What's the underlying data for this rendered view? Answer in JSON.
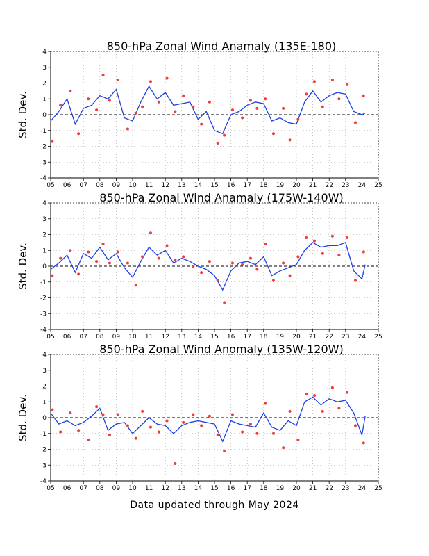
{
  "footer": "Data updated through May 2024",
  "colors": {
    "line": "#1f3fe0",
    "points": "#f03c3c",
    "frame": "#000000",
    "grid": "#a0a0a0"
  },
  "chart_data": [
    {
      "type": "line",
      "title": "850-hPa Zonal Wind Anamaly (135E-180)",
      "ylabel": "Std. Dev.",
      "xlim": [
        2005,
        2025
      ],
      "ylim": [
        -4,
        4
      ],
      "x_ticks": [
        "05",
        "06",
        "07",
        "08",
        "09",
        "10",
        "11",
        "12",
        "13",
        "14",
        "15",
        "16",
        "17",
        "18",
        "19",
        "20",
        "21",
        "22",
        "23",
        "24",
        "25"
      ],
      "y_ticks": [
        "-4",
        "-3",
        "-2",
        "-1",
        "0",
        "1",
        "2",
        "3",
        "4"
      ],
      "series": [
        {
          "kind": "smoothed",
          "x": [
            2005.0,
            2005.5,
            2006.0,
            2006.5,
            2007.0,
            2007.5,
            2008.0,
            2008.5,
            2009.0,
            2009.5,
            2010.0,
            2010.5,
            2011.0,
            2011.5,
            2012.0,
            2012.5,
            2013.0,
            2013.5,
            2014.0,
            2014.5,
            2015.0,
            2015.5,
            2016.0,
            2016.5,
            2017.0,
            2017.5,
            2018.0,
            2018.5,
            2019.0,
            2019.5,
            2020.0,
            2020.5,
            2021.0,
            2021.5,
            2022.0,
            2022.5,
            2023.0,
            2023.5,
            2024.0,
            2024.2
          ],
          "y": [
            -0.4,
            0.2,
            1.0,
            -0.6,
            0.4,
            0.6,
            1.2,
            1.0,
            1.6,
            -0.2,
            -0.4,
            0.8,
            1.8,
            1.0,
            1.4,
            0.6,
            0.7,
            0.8,
            -0.3,
            0.2,
            -1.0,
            -1.2,
            0.0,
            0.2,
            0.6,
            0.8,
            0.7,
            -0.4,
            -0.2,
            -0.5,
            -0.6,
            0.8,
            1.5,
            0.8,
            1.2,
            1.4,
            1.3,
            0.2,
            0.0,
            0.1
          ]
        },
        {
          "kind": "monthly",
          "x": [
            2005.1,
            2005.6,
            2006.2,
            2006.7,
            2007.3,
            2007.8,
            2008.2,
            2008.6,
            2009.1,
            2009.7,
            2010.2,
            2010.6,
            2011.1,
            2011.6,
            2012.1,
            2012.6,
            2013.1,
            2013.7,
            2014.2,
            2014.7,
            2015.2,
            2015.6,
            2016.1,
            2016.7,
            2017.2,
            2017.6,
            2018.1,
            2018.6,
            2019.2,
            2019.6,
            2020.1,
            2020.6,
            2021.1,
            2021.6,
            2022.2,
            2022.6,
            2023.1,
            2023.6,
            2024.1
          ],
          "y": [
            -1.7,
            0.6,
            1.5,
            -1.2,
            1.0,
            0.3,
            2.5,
            0.9,
            2.2,
            -0.9,
            0.1,
            0.5,
            2.1,
            0.8,
            2.3,
            0.2,
            1.2,
            0.5,
            -0.6,
            0.8,
            -1.8,
            -1.3,
            0.3,
            -0.2,
            0.9,
            0.4,
            1.0,
            -1.2,
            0.4,
            -1.6,
            -0.3,
            1.3,
            2.1,
            0.5,
            2.2,
            1.0,
            1.9,
            -0.5,
            1.2
          ]
        }
      ]
    },
    {
      "type": "line",
      "title": "850-hPa Zonal Wind Anamaly (175W-140W)",
      "ylabel": "Std. Dev.",
      "xlim": [
        2005,
        2025
      ],
      "ylim": [
        -4,
        4
      ],
      "x_ticks": [
        "05",
        "06",
        "07",
        "08",
        "09",
        "10",
        "11",
        "12",
        "13",
        "14",
        "15",
        "16",
        "17",
        "18",
        "19",
        "20",
        "21",
        "22",
        "23",
        "24",
        "25"
      ],
      "y_ticks": [
        "-4",
        "-3",
        "-2",
        "-1",
        "0",
        "1",
        "2",
        "3",
        "4"
      ],
      "series": [
        {
          "kind": "smoothed",
          "x": [
            2005.0,
            2005.5,
            2006.0,
            2006.5,
            2007.0,
            2007.5,
            2008.0,
            2008.5,
            2009.0,
            2009.5,
            2010.0,
            2010.5,
            2011.0,
            2011.5,
            2012.0,
            2012.5,
            2013.0,
            2013.5,
            2014.0,
            2014.5,
            2015.0,
            2015.5,
            2016.0,
            2016.5,
            2017.0,
            2017.5,
            2018.0,
            2018.5,
            2019.0,
            2019.5,
            2020.0,
            2020.5,
            2021.0,
            2021.5,
            2022.0,
            2022.5,
            2023.0,
            2023.5,
            2024.0,
            2024.2
          ],
          "y": [
            -0.2,
            0.2,
            0.7,
            -0.4,
            0.8,
            0.5,
            1.2,
            0.4,
            0.8,
            -0.1,
            -0.7,
            0.3,
            1.2,
            0.7,
            1.0,
            0.2,
            0.5,
            0.3,
            0.0,
            -0.2,
            -0.6,
            -1.5,
            -0.3,
            0.2,
            0.3,
            0.1,
            0.6,
            -0.6,
            -0.3,
            -0.1,
            0.1,
            1.0,
            1.5,
            1.2,
            1.3,
            1.3,
            1.5,
            -0.3,
            -0.8,
            0.1
          ]
        },
        {
          "kind": "monthly",
          "x": [
            2005.1,
            2005.6,
            2006.2,
            2006.7,
            2007.3,
            2007.8,
            2008.2,
            2008.6,
            2009.1,
            2009.7,
            2010.2,
            2010.6,
            2011.1,
            2011.6,
            2012.1,
            2012.6,
            2013.1,
            2013.7,
            2014.2,
            2014.7,
            2015.2,
            2015.6,
            2016.1,
            2016.7,
            2017.2,
            2017.6,
            2018.1,
            2018.6,
            2019.2,
            2019.6,
            2020.1,
            2020.6,
            2021.1,
            2021.6,
            2022.2,
            2022.6,
            2023.1,
            2023.6,
            2024.1
          ],
          "y": [
            -0.6,
            0.5,
            1.0,
            -0.5,
            0.9,
            0.3,
            1.4,
            0.2,
            0.9,
            0.2,
            -1.2,
            0.6,
            2.1,
            0.5,
            1.3,
            0.4,
            0.6,
            0.0,
            -0.4,
            0.3,
            -0.9,
            -2.3,
            0.2,
            0.1,
            0.5,
            -0.2,
            1.4,
            -0.9,
            0.2,
            -0.6,
            0.6,
            1.8,
            1.6,
            0.8,
            1.9,
            0.7,
            1.8,
            -0.9,
            0.9
          ]
        }
      ]
    },
    {
      "type": "line",
      "title": "850-hPa Zonal Wind Anomaly (135W-120W)",
      "ylabel": "Std. Dev.",
      "xlim": [
        2005,
        2025
      ],
      "ylim": [
        -4,
        4
      ],
      "x_ticks": [
        "05",
        "06",
        "07",
        "08",
        "09",
        "10",
        "11",
        "12",
        "13",
        "14",
        "15",
        "16",
        "17",
        "18",
        "19",
        "20",
        "21",
        "22",
        "23",
        "24",
        "25"
      ],
      "y_ticks": [
        "-4",
        "-3",
        "-2",
        "-1",
        "0",
        "1",
        "2",
        "3",
        "4"
      ],
      "series": [
        {
          "kind": "smoothed",
          "x": [
            2005.0,
            2005.5,
            2006.0,
            2006.5,
            2007.0,
            2007.5,
            2008.0,
            2008.5,
            2009.0,
            2009.5,
            2010.0,
            2010.5,
            2011.0,
            2011.5,
            2012.0,
            2012.5,
            2013.0,
            2013.5,
            2014.0,
            2014.5,
            2015.0,
            2015.5,
            2016.0,
            2016.5,
            2017.0,
            2017.5,
            2018.0,
            2018.5,
            2019.0,
            2019.5,
            2020.0,
            2020.5,
            2021.0,
            2021.5,
            2022.0,
            2022.5,
            2023.0,
            2023.5,
            2024.0,
            2024.2
          ],
          "y": [
            0.3,
            -0.4,
            -0.2,
            -0.5,
            -0.3,
            0.1,
            0.6,
            -0.8,
            -0.4,
            -0.3,
            -1.0,
            -0.5,
            0.0,
            -0.4,
            -0.5,
            -1.0,
            -0.5,
            -0.3,
            -0.2,
            -0.3,
            -0.4,
            -1.5,
            -0.2,
            -0.4,
            -0.5,
            -0.6,
            0.3,
            -0.6,
            -0.8,
            -0.2,
            -0.5,
            1.0,
            1.3,
            0.8,
            1.2,
            1.0,
            1.1,
            0.3,
            -1.1,
            0.1
          ]
        },
        {
          "kind": "monthly",
          "x": [
            2005.1,
            2005.6,
            2006.2,
            2006.7,
            2007.3,
            2007.8,
            2008.2,
            2008.6,
            2009.1,
            2009.7,
            2010.2,
            2010.6,
            2011.1,
            2011.6,
            2012.1,
            2012.6,
            2013.1,
            2013.7,
            2014.2,
            2014.7,
            2015.2,
            2015.6,
            2016.1,
            2016.7,
            2017.2,
            2017.6,
            2018.1,
            2018.6,
            2019.2,
            2019.6,
            2020.1,
            2020.6,
            2021.1,
            2021.6,
            2022.2,
            2022.6,
            2023.1,
            2023.6,
            2024.1
          ],
          "y": [
            0.5,
            -0.9,
            0.3,
            -0.8,
            -1.4,
            0.7,
            0.2,
            -1.1,
            0.2,
            -0.5,
            -1.3,
            0.4,
            -0.6,
            -0.9,
            -0.2,
            -2.9,
            -0.3,
            0.2,
            -0.5,
            0.1,
            -1.1,
            -2.1,
            0.2,
            -0.9,
            -0.4,
            -1.0,
            0.9,
            -1.0,
            -1.9,
            0.4,
            -1.4,
            1.5,
            1.4,
            0.4,
            1.9,
            0.6,
            1.6,
            -0.5,
            -1.6
          ]
        }
      ]
    }
  ]
}
